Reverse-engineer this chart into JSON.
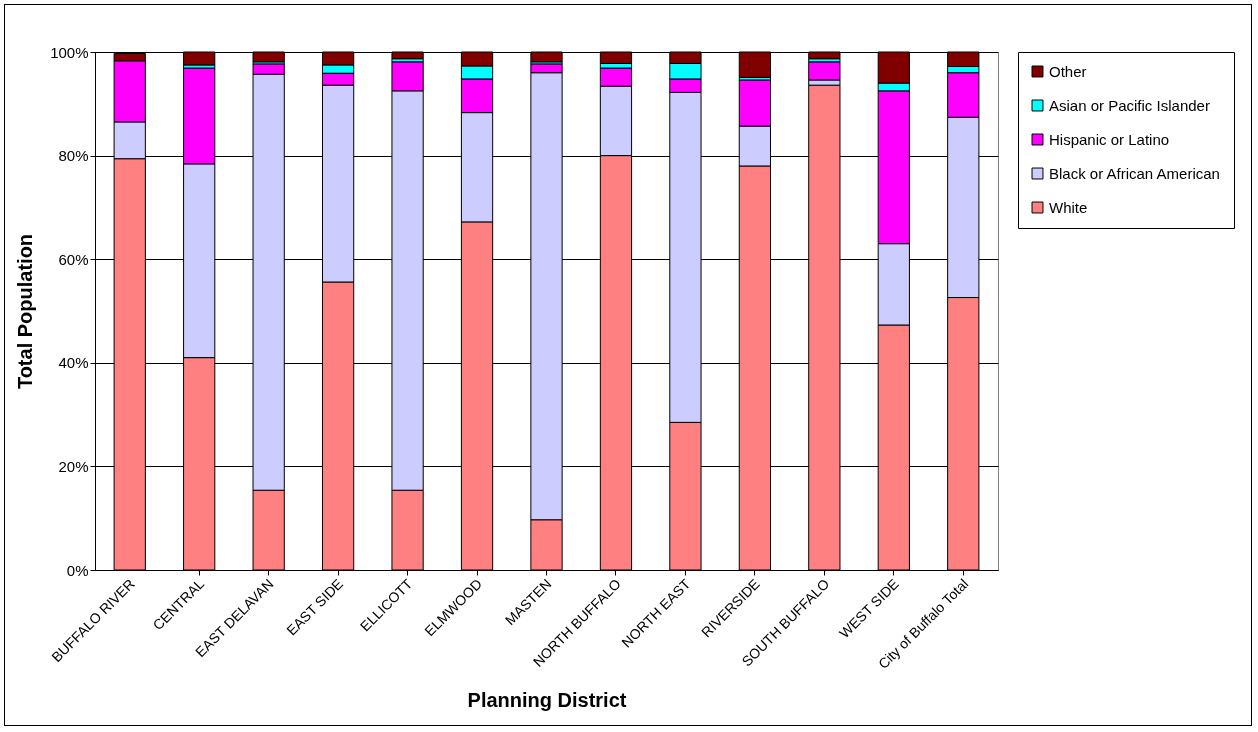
{
  "chart_data": {
    "type": "bar",
    "stacked": true,
    "xlabel": "Planning District",
    "ylabel": "Total Population",
    "categories": [
      "BUFFALO RIVER",
      "CENTRAL",
      "EAST DELAVAN",
      "EAST SIDE",
      "ELLICOTT",
      "ELMWOOD",
      "MASTEN",
      "NORTH BUFFALO",
      "NORTH EAST",
      "RIVERSIDE",
      "SOUTH BUFFALO",
      "WEST SIDE",
      "City of Buffalo Total"
    ],
    "series": [
      {
        "name": "White",
        "color": "#ff8080",
        "values": [
          79.4,
          41.0,
          15.4,
          55.6,
          15.4,
          67.2,
          9.7,
          80.0,
          28.5,
          78.0,
          93.6,
          47.3,
          52.6
        ]
      },
      {
        "name": "Black or African American",
        "color": "#ccccff",
        "values": [
          7.1,
          37.4,
          80.3,
          38.0,
          77.1,
          21.1,
          86.3,
          13.4,
          63.7,
          7.7,
          1.0,
          15.7,
          34.8
        ]
      },
      {
        "name": "Hispanic or Latino",
        "color": "#ff00ff",
        "values": [
          11.8,
          18.5,
          2.0,
          2.3,
          5.6,
          6.5,
          1.7,
          3.5,
          2.6,
          8.9,
          3.5,
          29.5,
          8.6
        ]
      },
      {
        "name": "Asian or Pacific Islander",
        "color": "#00ffff",
        "values": [
          null,
          0.6,
          0.4,
          1.6,
          0.6,
          2.5,
          0.4,
          0.9,
          3.0,
          0.5,
          0.6,
          1.5,
          1.2
        ]
      },
      {
        "name": "Other",
        "color": "#800000",
        "values": [
          1.4,
          2.5,
          1.9,
          2.5,
          1.3,
          2.7,
          1.9,
          2.2,
          2.2,
          4.9,
          1.3,
          6.0,
          2.8
        ]
      }
    ],
    "ylim": [
      0,
      100
    ],
    "yticks": [
      {
        "value": 0,
        "label": "0%"
      },
      {
        "value": 20,
        "label": "20%"
      },
      {
        "value": 40,
        "label": "40%"
      },
      {
        "value": 60,
        "label": "60%"
      },
      {
        "value": 80,
        "label": "80%"
      },
      {
        "value": 100,
        "label": "100%"
      }
    ],
    "grid": "y",
    "legend": "right"
  }
}
